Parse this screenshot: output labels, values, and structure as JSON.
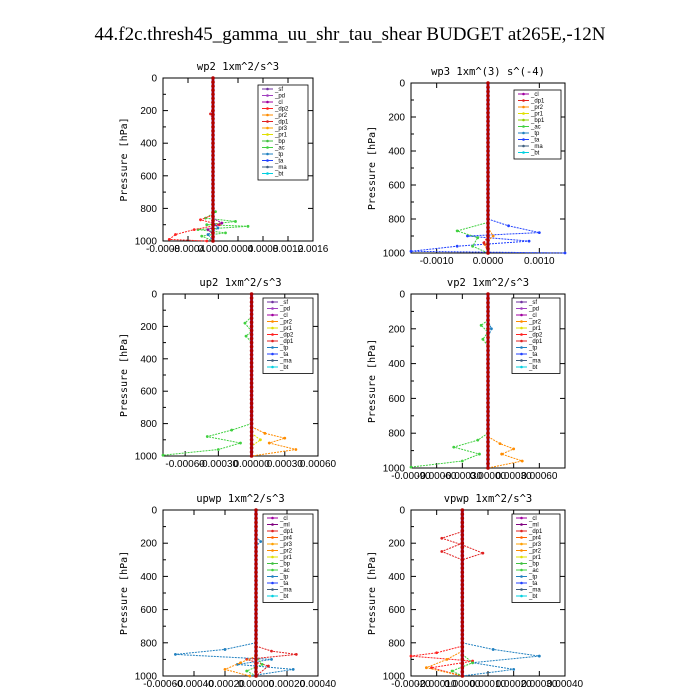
{
  "figure_title": "44.f2c.thresh45_gamma_uu_shr_tau_shear  BUDGET at265E,-12N",
  "colors": {
    "_sf": "#7030a0",
    "_pd": "#a040c0",
    "_cl": "#a000a0",
    "_ml": "#800080",
    "_dp2": "#ff2020",
    "_dp1": "#e02020",
    "_pr2": "#ff8c00",
    "_pr3": "#ffa000",
    "_pr4": "#ff6000",
    "_pr1": "#e0e000",
    "_bp1": "#90d000",
    "_bp": "#40c040",
    "_ac": "#40d040",
    "_tp": "#2080c0",
    "_ta": "#2040ff",
    "_ma": "#406080",
    "_bt": "#00d0e0",
    "bold": "#b00000"
  },
  "chart_data": [
    {
      "type": "line",
      "title": "wp2   1xm^2/s^3",
      "ylabel": "Pressure [hPa]",
      "xlim": [
        -0.0008,
        0.0016
      ],
      "xticks": [
        -0.0008,
        -0.0004,
        0.0,
        0.0004,
        0.0008,
        0.0012,
        0.0016
      ],
      "xtick_labels": [
        "-0.0008",
        "-0.0004",
        "0.0000",
        "0.0004",
        "0.0008",
        "0.0012",
        "0.0016"
      ],
      "ylim": [
        1000,
        0
      ],
      "yticks": [
        0,
        200,
        400,
        600,
        800,
        1000
      ],
      "legend": [
        "_sf",
        "_pd",
        "_cl",
        "_dp2",
        "_pr2",
        "_dp1",
        "_pr3",
        "_pr1",
        "_bp",
        "_ac",
        "_tp",
        "_ta",
        "_ma",
        "_bt"
      ],
      "series": [
        {
          "name": "_ac",
          "points": [
            [
              4e-05,
              820
            ],
            [
              -0.00012,
              860
            ],
            [
              0.00036,
              880
            ],
            [
              -0.0001,
              900
            ],
            [
              0.00056,
              910
            ],
            [
              -0.00024,
              930
            ],
            [
              0.0002,
              950
            ],
            [
              -0.00018,
              970
            ],
            [
              0.0,
              1000
            ]
          ]
        },
        {
          "name": "_dp2",
          "points": [
            [
              0.0,
              840
            ],
            [
              -0.0002,
              870
            ],
            [
              0.0001,
              900
            ],
            [
              -0.0003,
              930
            ],
            [
              -0.0006,
              960
            ],
            [
              -0.0007,
              990
            ],
            [
              -0.0001,
              1000
            ]
          ]
        },
        {
          "name": "_dp1",
          "points": [
            [
              0.0,
              180
            ],
            [
              -4e-05,
              220
            ],
            [
              0.0,
              260
            ]
          ]
        },
        {
          "name": "_tp",
          "points": [
            [
              0.0,
              880
            ],
            [
              8e-05,
              920
            ],
            [
              -8e-05,
              960
            ],
            [
              0.0,
              1000
            ]
          ]
        },
        {
          "name": "_cl",
          "points": [
            [
              0.0,
              860
            ],
            [
              0.00014,
              890
            ],
            [
              -8e-05,
              930
            ],
            [
              0.0,
              960
            ]
          ]
        }
      ]
    },
    {
      "type": "line",
      "title": "wp3   1xm^(3) s^(-4)",
      "ylabel": "Pressure [hPa]",
      "xlim": [
        -0.0015,
        0.0015
      ],
      "xticks": [
        -0.001,
        0.0,
        0.001
      ],
      "xtick_labels": [
        "-0.0010",
        "0.0000",
        "0.0010"
      ],
      "ylim": [
        1000,
        0
      ],
      "yticks": [
        0,
        200,
        400,
        600,
        800,
        1000
      ],
      "legend": [
        "_cl",
        "_dp1",
        "_pr2",
        "_pr1",
        "_bp1",
        "_ac",
        "_tp",
        "_ta",
        "_ma",
        "_bt"
      ],
      "series": [
        {
          "name": "_ta",
          "points": [
            [
              0.0,
              800
            ],
            [
              0.0004,
              840
            ],
            [
              0.001,
              880
            ],
            [
              -0.0004,
              900
            ],
            [
              0.0008,
              930
            ],
            [
              -0.0006,
              960
            ],
            [
              -0.0015,
              990
            ],
            [
              0.0015,
              1000
            ]
          ]
        },
        {
          "name": "_ac",
          "points": [
            [
              0.0,
              820
            ],
            [
              -0.0006,
              870
            ],
            [
              -0.0002,
              910
            ],
            [
              -0.0003,
              960
            ],
            [
              0.0,
              1000
            ]
          ]
        },
        {
          "name": "_pr2",
          "points": [
            [
              0.0,
              850
            ],
            [
              0.0001,
              900
            ],
            [
              -6e-05,
              950
            ],
            [
              0.0,
              1000
            ]
          ]
        },
        {
          "name": "_dp1",
          "points": [
            [
              0.0,
              900
            ],
            [
              -8e-05,
              940
            ],
            [
              0.0,
              980
            ]
          ]
        }
      ]
    },
    {
      "type": "line",
      "title": "up2   1xm^2/s^3",
      "ylabel": "Pressure [hPa]",
      "xlim": [
        -0.0008,
        0.0006
      ],
      "xticks": [
        -0.0006,
        -0.0003,
        0.0,
        0.0003,
        0.0006
      ],
      "xtick_labels": [
        "-0.00060",
        "-0.00030",
        "0.00000",
        "0.00030",
        "0.00060"
      ],
      "ylim": [
        1000,
        0
      ],
      "yticks": [
        0,
        200,
        400,
        600,
        800,
        1000
      ],
      "legend": [
        "_sf",
        "_pd",
        "_cl",
        "_pr2",
        "_pr1",
        "_dp2",
        "_dp1",
        "_tp",
        "_ta",
        "_ma",
        "_bt"
      ],
      "series": [
        {
          "name": "_ac",
          "points": [
            [
              0.0,
              140
            ],
            [
              -6e-05,
              180
            ],
            [
              0.0,
              230
            ],
            [
              -5e-05,
              260
            ],
            [
              0.0,
              300
            ]
          ]
        },
        {
          "name": "_ac",
          "points": [
            [
              0.0,
              800
            ],
            [
              -0.00018,
              840
            ],
            [
              -0.0004,
              880
            ],
            [
              -0.0001,
              920
            ],
            [
              -0.0003,
              960
            ],
            [
              -0.0008,
              995
            ]
          ]
        },
        {
          "name": "_pr2",
          "points": [
            [
              0.0,
              820
            ],
            [
              0.00012,
              860
            ],
            [
              0.0003,
              890
            ],
            [
              0.00016,
              920
            ],
            [
              0.0004,
              960
            ],
            [
              0.0,
              1000
            ]
          ]
        },
        {
          "name": "_pr1",
          "points": [
            [
              0.0,
              860
            ],
            [
              8e-05,
              900
            ],
            [
              0.0,
              940
            ]
          ]
        }
      ]
    },
    {
      "type": "line",
      "title": "vp2   1xm^2/s^3",
      "ylabel": "Pressure [hPa]",
      "xlim": [
        -0.0009,
        0.0009
      ],
      "xticks": [
        -0.0009,
        -0.0006,
        -0.0003,
        0.0,
        0.0003,
        0.0006
      ],
      "xtick_labels": [
        "-0.00090",
        "-0.00060",
        "-0.00030",
        "0.00000",
        "0.00030",
        "0.00060"
      ],
      "ylim": [
        1000,
        0
      ],
      "yticks": [
        0,
        200,
        400,
        600,
        800,
        1000
      ],
      "legend": [
        "_sf",
        "_pd",
        "_cl",
        "_pr2",
        "_pr1",
        "_dp2",
        "_dp1",
        "_tp",
        "_ta",
        "_ma",
        "_bt"
      ],
      "series": [
        {
          "name": "_ac",
          "points": [
            [
              0.0,
              150
            ],
            [
              -8e-05,
              180
            ],
            [
              0.0,
              220
            ],
            [
              -6e-05,
              260
            ],
            [
              0.0,
              300
            ]
          ]
        },
        {
          "name": "_ac",
          "points": [
            [
              0.0,
              800
            ],
            [
              -0.00012,
              840
            ],
            [
              -0.0004,
              880
            ],
            [
              -0.0001,
              920
            ],
            [
              -0.0003,
              960
            ],
            [
              -0.0009,
              995
            ]
          ]
        },
        {
          "name": "_pr2",
          "points": [
            [
              0.0,
              820
            ],
            [
              0.00014,
              860
            ],
            [
              0.0003,
              890
            ],
            [
              0.00016,
              920
            ],
            [
              0.0004,
              960
            ],
            [
              0.0,
              1000
            ]
          ]
        },
        {
          "name": "_tp",
          "points": [
            [
              0.0,
              150
            ],
            [
              4e-05,
              200
            ],
            [
              0.0,
              250
            ]
          ]
        }
      ]
    },
    {
      "type": "line",
      "title": "upwp   1xm^2/s^3",
      "ylabel": "Pressure [hPa]",
      "xlim": [
        -0.0006,
        0.0004
      ],
      "xticks": [
        -0.0006,
        -0.0004,
        -0.0002,
        0.0,
        0.0002,
        0.0004
      ],
      "xtick_labels": [
        "-0.00060",
        "-0.00040",
        "-0.00020",
        "0.00000",
        "0.00020",
        "0.00040"
      ],
      "ylim": [
        1000,
        0
      ],
      "yticks": [
        0,
        200,
        400,
        600,
        800,
        1000
      ],
      "legend": [
        "_cl",
        "_ml",
        "_dp1",
        "_pr4",
        "_pr3",
        "_pr2",
        "_pr1",
        "_bp",
        "_ac",
        "_tp",
        "_ta",
        "_ma",
        "_bt"
      ],
      "series": [
        {
          "name": "_tp",
          "points": [
            [
              0.0,
              800
            ],
            [
              -0.0002,
              840
            ],
            [
              -0.00052,
              870
            ],
            [
              0.0001,
              900
            ],
            [
              -0.00012,
              930
            ],
            [
              0.00024,
              960
            ],
            [
              -4e-05,
              1000
            ]
          ]
        },
        {
          "name": "_dp1",
          "points": [
            [
              0.0,
              820
            ],
            [
              0.0001,
              850
            ],
            [
              0.00026,
              870
            ],
            [
              -6e-05,
              900
            ],
            [
              8e-05,
              940
            ],
            [
              0.0,
              1000
            ]
          ]
        },
        {
          "name": "_pr2",
          "points": [
            [
              0.0,
              880
            ],
            [
              -0.0001,
              920
            ],
            [
              -0.0002,
              960
            ],
            [
              -4e-05,
              1000
            ]
          ]
        },
        {
          "name": "_ac",
          "points": [
            [
              0.0,
              880
            ],
            [
              4e-05,
              930
            ],
            [
              -6e-05,
              970
            ],
            [
              0.0,
              1000
            ]
          ]
        },
        {
          "name": "_tp",
          "points": [
            [
              0.0,
              160
            ],
            [
              3e-05,
              190
            ],
            [
              0.0,
              220
            ]
          ]
        }
      ]
    },
    {
      "type": "line",
      "title": "vpwp   1xm^2/s^3",
      "ylabel": "Pressure [hPa]",
      "xlim": [
        -0.0002,
        0.0004
      ],
      "xticks": [
        -0.0002,
        -0.0001,
        0.0,
        0.0001,
        0.0002,
        0.0003,
        0.0004
      ],
      "xtick_labels": [
        "-0.00020",
        "-0.00010",
        "0.00000",
        "0.00010",
        "0.00020",
        "0.00030",
        "0.00040"
      ],
      "ylim": [
        1000,
        0
      ],
      "yticks": [
        0,
        200,
        400,
        600,
        800,
        1000
      ],
      "legend": [
        "_cl",
        "_ml",
        "_dp1",
        "_pr4",
        "_pr3",
        "_pr2",
        "_pr1",
        "_bp",
        "_ac",
        "_tp",
        "_ta",
        "_ma",
        "_bt"
      ],
      "series": [
        {
          "name": "_dp1",
          "points": [
            [
              0.0,
              130
            ],
            [
              -8e-05,
              170
            ],
            [
              0.0,
              210
            ],
            [
              8e-05,
              260
            ],
            [
              0.0,
              300
            ],
            [
              -8e-05,
              250
            ],
            [
              0.0,
              200
            ]
          ]
        },
        {
          "name": "_tp",
          "points": [
            [
              0.0,
              800
            ],
            [
              0.00012,
              840
            ],
            [
              0.0003,
              880
            ],
            [
              4e-05,
              920
            ],
            [
              0.0002,
              960
            ],
            [
              0.0,
              1000
            ]
          ]
        },
        {
          "name": "_dp2",
          "points": [
            [
              0.0,
              820
            ],
            [
              -0.0001,
              860
            ],
            [
              -0.0002,
              880
            ],
            [
              4e-05,
              910
            ],
            [
              -0.00012,
              950
            ],
            [
              0.0,
              1000
            ]
          ]
        },
        {
          "name": "_pr2",
          "points": [
            [
              0.0,
              850
            ],
            [
              -6e-05,
              900
            ],
            [
              -0.00014,
              950
            ],
            [
              0.0,
              1000
            ]
          ]
        },
        {
          "name": "_ac",
          "points": [
            [
              0.0,
              870
            ],
            [
              4e-05,
              920
            ],
            [
              -4e-05,
              970
            ],
            [
              0.0,
              1000
            ]
          ]
        }
      ]
    }
  ]
}
